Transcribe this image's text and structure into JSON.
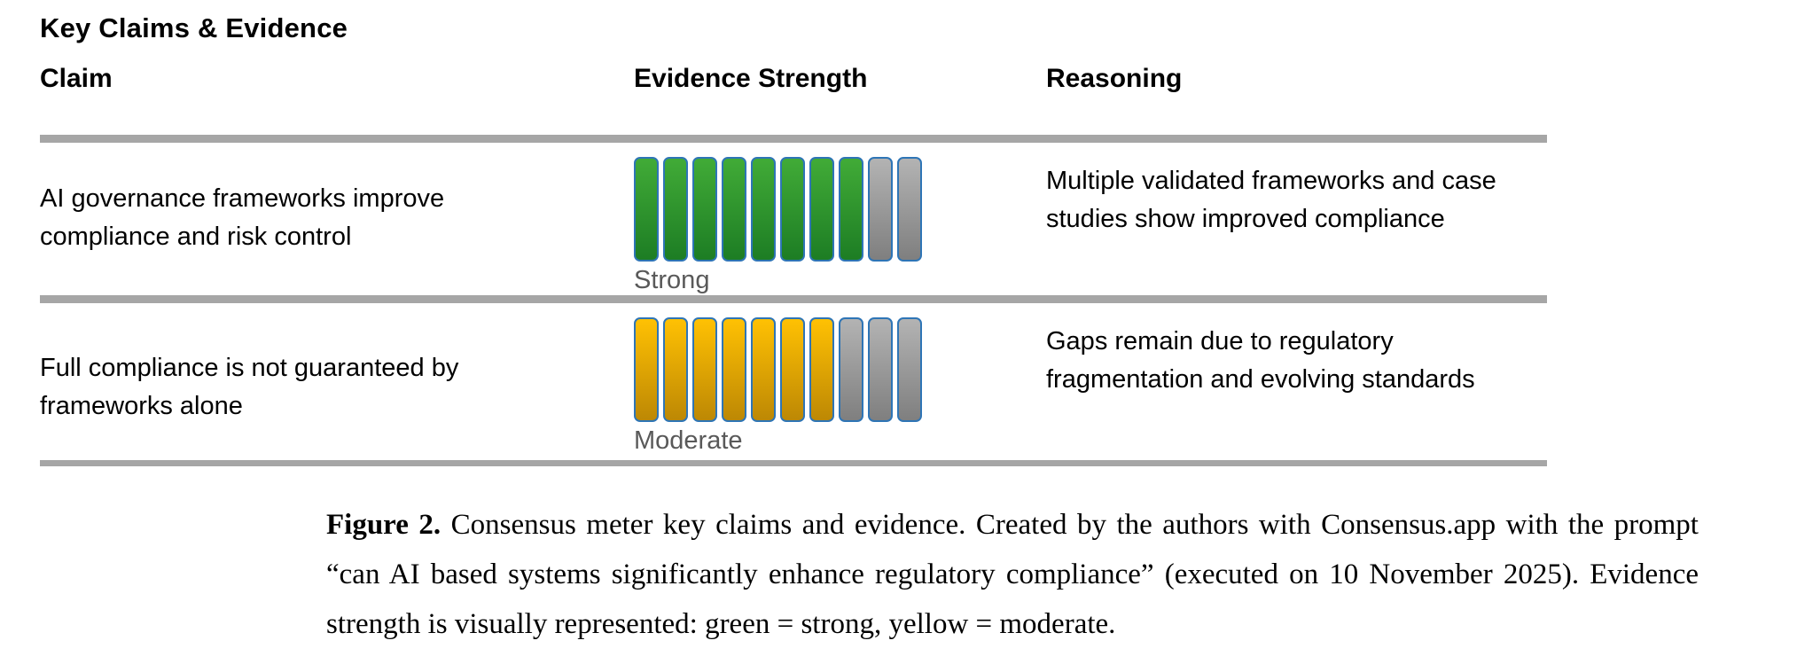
{
  "title": "Key Claims & Evidence",
  "table": {
    "headers": [
      "Claim",
      "Evidence Strength",
      "Reasoning"
    ],
    "rows": [
      {
        "claim": "AI governance frameworks improve compliance and risk control",
        "strength": "Strong",
        "meter": {
          "total": 10,
          "filled": 8,
          "color": "green"
        },
        "reasoning": "Multiple validated frameworks and case studies show improved compliance"
      },
      {
        "claim": "Full compliance is not guaranteed by frameworks alone",
        "strength": "Moderate",
        "meter": {
          "total": 10,
          "filled": 7,
          "color": "yellow"
        },
        "reasoning": "Gaps remain due to regulatory fragmentation and evolving standards"
      }
    ]
  },
  "caption": {
    "label": "Figure 2.",
    "text": "Consensus meter key claims and evidence. Created by the authors with Consensus.app with the prompt “can AI based systems significantly enhance regulatory compliance” (executed on 10 November 2025). Evidence strength is visually represented: green = strong, yellow = moderate."
  },
  "colors": {
    "green_top": "#41ab37",
    "green_bottom": "#1d7d24",
    "yellow_top": "#ffc103",
    "yellow_bottom": "#bd8804",
    "gray_top": "#b3b3b3",
    "gray_bottom": "#7f7f7f",
    "bar_border": "#2e75b6",
    "rule": "#a6a6a6",
    "strength_label": "#595959"
  }
}
